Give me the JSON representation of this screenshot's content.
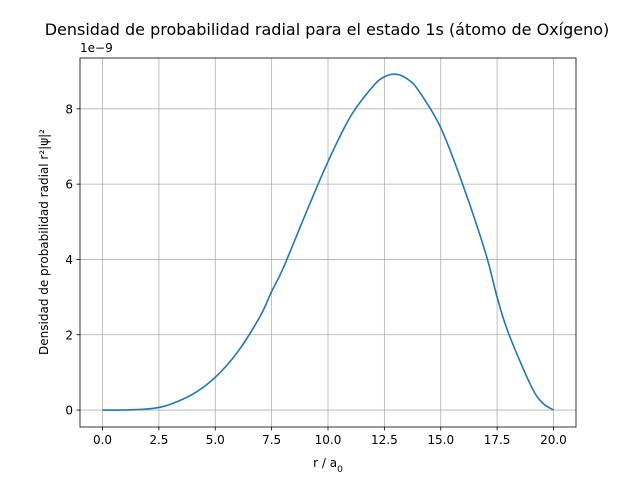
{
  "chart_data": {
    "type": "line",
    "title": "Densidad de probabilidad radial para el estado 1s (átomo de Oxígeno)",
    "xlabel": "r / a",
    "xlabel_subscript": "0",
    "ylabel": "Densidad de probabilidad radial r²|ψ|²",
    "y_offset_text": "1e−9",
    "y_scale": 1e-09,
    "xlim": [
      -1.0,
      21.0
    ],
    "ylim": [
      -4.5e-10,
      9.35e-09
    ],
    "x_ticks": [
      0.0,
      2.5,
      5.0,
      7.5,
      10.0,
      12.5,
      15.0,
      17.5,
      20.0
    ],
    "x_tick_labels": [
      "0.0",
      "2.5",
      "5.0",
      "7.5",
      "10.0",
      "12.5",
      "15.0",
      "17.5",
      "20.0"
    ],
    "y_ticks": [
      0,
      2e-09,
      4e-09,
      6e-09,
      8e-09
    ],
    "y_tick_labels": [
      "0",
      "2",
      "4",
      "6",
      "8"
    ],
    "grid": true,
    "series": [
      {
        "color": "#1f77b4",
        "x": [
          0,
          1,
          2,
          2.5,
          3,
          4,
          5,
          6,
          7,
          7.5,
          8,
          9,
          10,
          11,
          12,
          12.5,
          13,
          13.5,
          14,
          15,
          16,
          17,
          17.5,
          18,
          19,
          19.5,
          20
        ],
        "y": [
          0,
          2e-12,
          3e-11,
          7e-11,
          1.5e-10,
          4.2e-10,
          8.7e-10,
          1.55e-09,
          2.5e-09,
          3.15e-09,
          3.75e-09,
          5.2e-09,
          6.6e-09,
          7.8e-09,
          8.6e-09,
          8.85e-09,
          8.92e-09,
          8.8e-09,
          8.5e-09,
          7.5e-09,
          5.95e-09,
          4.15e-09,
          3e-09,
          2.05e-09,
          6.5e-10,
          2e-10,
          0
        ]
      }
    ]
  }
}
